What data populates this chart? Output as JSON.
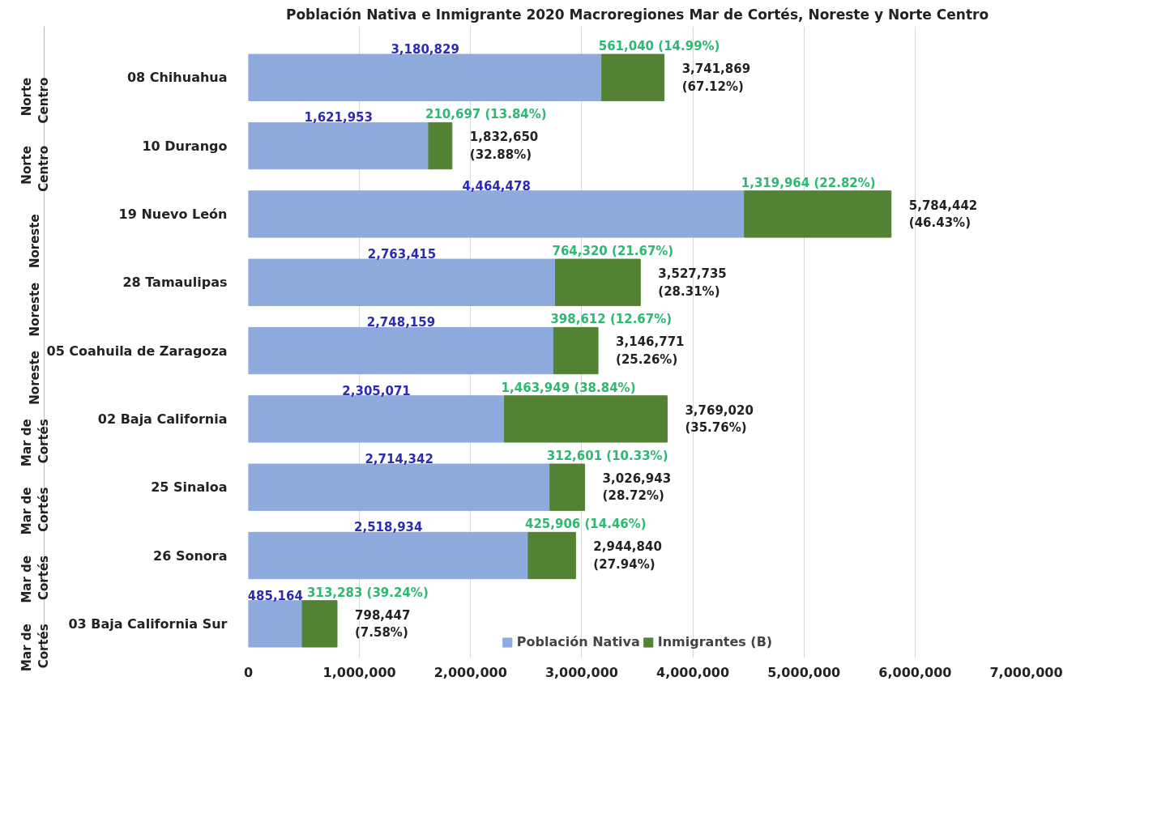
{
  "chart_data": {
    "type": "bar",
    "orientation": "horizontal",
    "stacked": true,
    "title": "Población Nativa e Inmigrante 2020 Macroregiones Mar de Cortés, Noreste y Norte Centro",
    "categories": [
      "08 Chihuahua",
      "10 Durango",
      "19 Nuevo León",
      "28 Tamaulipas",
      "05 Coahuila de Zaragoza",
      "02 Baja California",
      "25 Sinaloa",
      "26 Sonora",
      "03 Baja California Sur"
    ],
    "series": [
      {
        "name": "Población Nativa",
        "color": "#8faadc",
        "values": [
          3180829,
          1621953,
          4464478,
          2763415,
          2748159,
          2305071,
          2714342,
          2518934,
          485164
        ],
        "value_labels": [
          "3,180,829",
          "1,621,953",
          "4,464,478",
          "2,763,415",
          "2,748,159",
          "2,305,071",
          "2,714,342",
          "2,518,934",
          "485,164"
        ]
      },
      {
        "name": "Inmigrantes (B)",
        "color": "#548235",
        "values": [
          561040,
          210697,
          1319964,
          764320,
          398612,
          1463949,
          312601,
          425906,
          313283
        ],
        "value_labels": [
          "561,040 (14.99%)",
          "210,697 (13.84%)",
          "1,319,964 (22.82%)",
          "764,320 (21.67%)",
          "398,612 (12.67%)",
          "1,463,949 (38.84%)",
          "312,601 (10.33%)",
          "425,906 (14.46%)",
          "313,283 (39.24%)"
        ]
      }
    ],
    "totals": [
      "3,741,869\n(67.12%)",
      "1,832,650\n(32.88%)",
      "5,784,442\n(46.43%)",
      "3,527,735\n(28.31%)",
      "3,146,771\n(25.26%)",
      "3,769,020\n(35.76%)",
      "3,026,943\n(28.72%)",
      "2,944,840\n(27.94%)",
      "798,447\n(7.58%)"
    ],
    "annotations": [
      "Norte\nCentro",
      "Norte\nCentro",
      "Noreste",
      "Noreste",
      "Noreste",
      "Mar de\nCortés",
      "Mar de\nCortés",
      "Mar de\nCortés",
      "Mar de\nCortés"
    ],
    "xlim": [
      0,
      7000000
    ],
    "xticks": [
      0,
      {
        "value": 1000000,
        "label": "1,000,000"
      },
      {
        "value": 2000000,
        "label": "2,000,000"
      },
      {
        "value": 3000000,
        "label": "3,000,000"
      },
      {
        "value": 4000000,
        "label": "4,000,000"
      },
      {
        "value": 5000000,
        "label": "5,000,000"
      },
      {
        "value": 6000000,
        "label": "6,000,000"
      },
      {
        "value": 7000000,
        "label": "7,000,000"
      }
    ],
    "grid": "x",
    "legend": "bottom"
  }
}
